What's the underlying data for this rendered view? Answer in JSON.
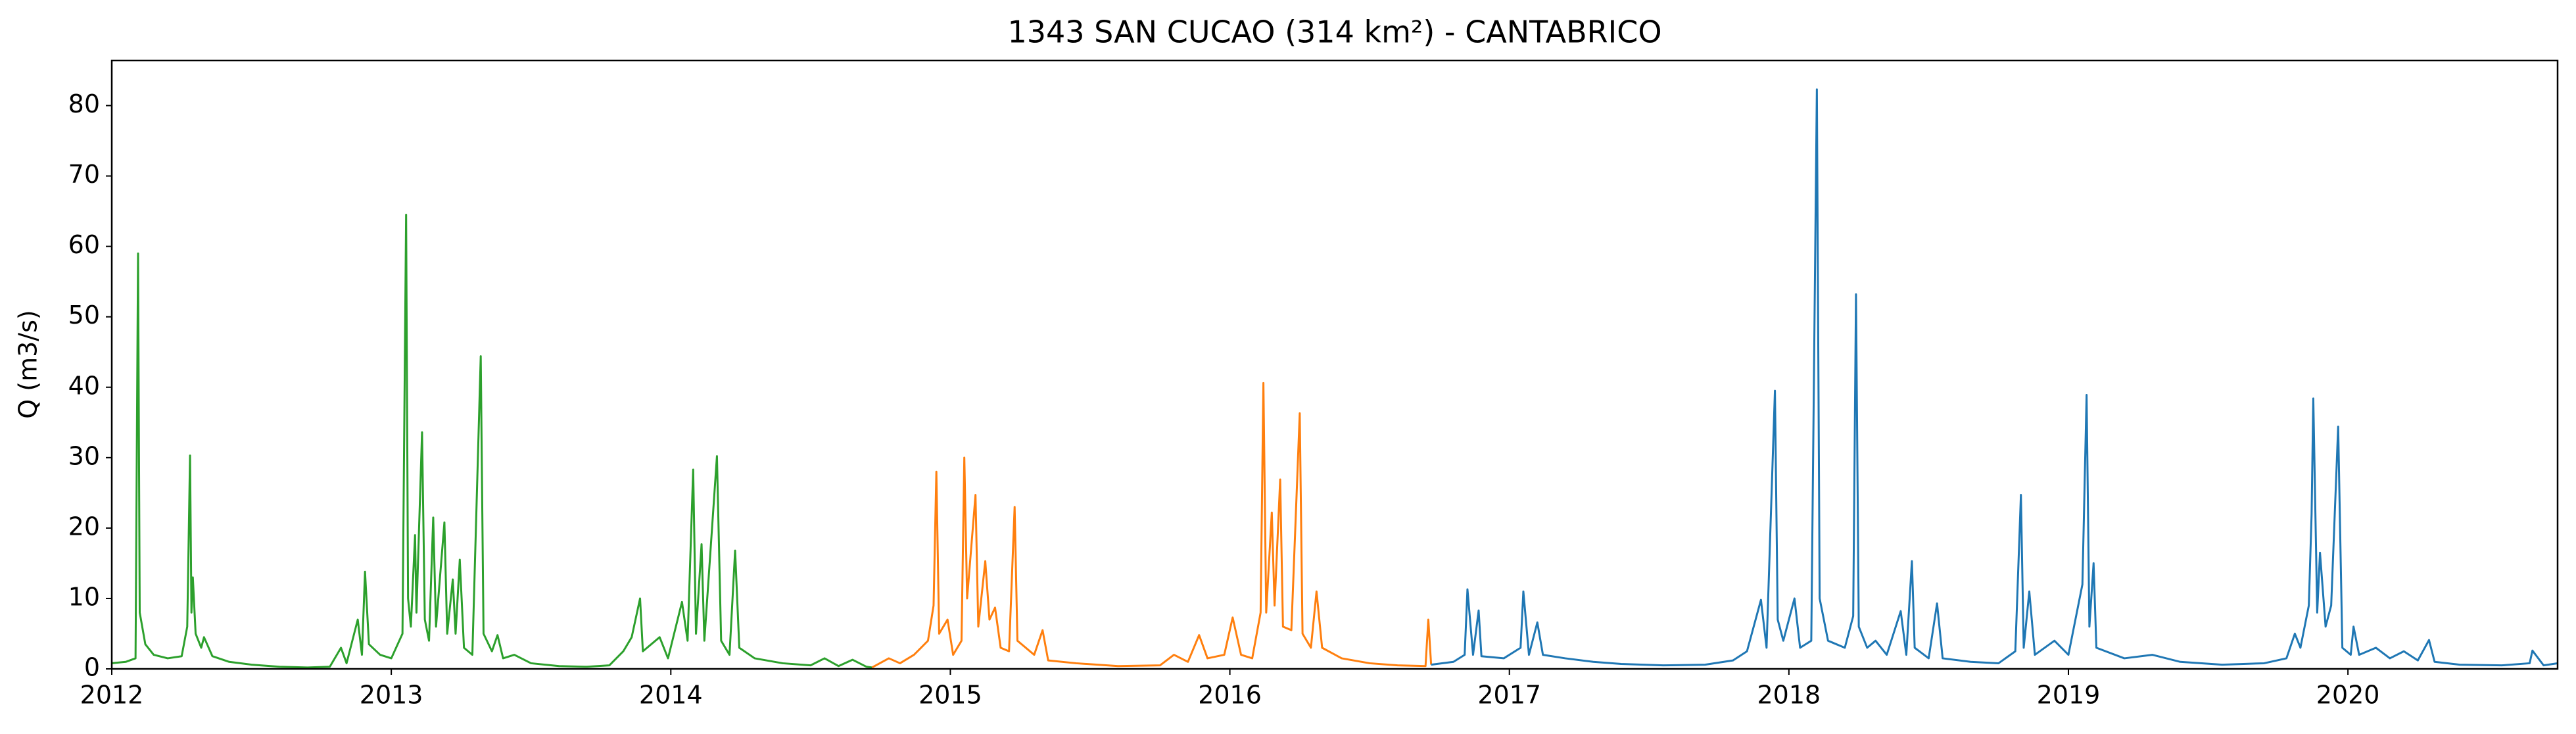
{
  "chart_data": {
    "type": "line",
    "title": "1343 SAN CUCAO (314 km²) - CANTABRICO",
    "ylabel": "Q (m3/s)",
    "xlim": [
      2012,
      2020.75
    ],
    "xticks": [
      2012,
      2013,
      2014,
      2015,
      2016,
      2017,
      2018,
      2019,
      2020
    ],
    "ylim": [
      0,
      86.4
    ],
    "yticks": [
      0,
      10,
      20,
      30,
      40,
      50,
      60,
      70,
      80
    ],
    "grid": false,
    "series": [
      {
        "color": "#2ca02c",
        "x": [
          2012.0,
          2012.05,
          2012.085,
          2012.094,
          2012.1,
          2012.12,
          2012.15,
          2012.2,
          2012.25,
          2012.27,
          2012.28,
          2012.285,
          2012.29,
          2012.3,
          2012.32,
          2012.33,
          2012.36,
          2012.42,
          2012.5,
          2012.6,
          2012.7,
          2012.78,
          2012.82,
          2012.84,
          2012.88,
          2012.895,
          2012.906,
          2012.92,
          2012.96,
          2013.0,
          2013.04,
          2013.053,
          2013.06,
          2013.07,
          2013.085,
          2013.09,
          2013.11,
          2013.12,
          2013.135,
          2013.15,
          2013.16,
          2013.19,
          2013.2,
          2013.22,
          2013.23,
          2013.245,
          2013.26,
          2013.29,
          2013.32,
          2013.33,
          2013.36,
          2013.38,
          2013.4,
          2013.44,
          2013.5,
          2013.6,
          2013.7,
          2013.78,
          2013.83,
          2013.86,
          2013.89,
          2013.9,
          2013.96,
          2013.99,
          2014.04,
          2014.06,
          2014.08,
          2014.09,
          2014.11,
          2014.12,
          2014.165,
          2014.18,
          2014.21,
          2014.23,
          2014.245,
          2014.3,
          2014.4,
          2014.5,
          2014.55,
          2014.6,
          2014.65,
          2014.7,
          2014.72
        ],
        "values": [
          0.8,
          1.0,
          1.5,
          59,
          8,
          3.5,
          2,
          1.5,
          1.8,
          6,
          30.3,
          8,
          13,
          5,
          3,
          4.5,
          1.8,
          1.0,
          0.6,
          0.3,
          0.2,
          0.3,
          3,
          0.8,
          7,
          2,
          13.8,
          3.5,
          2,
          1.5,
          5,
          64.5,
          10,
          6,
          19,
          8,
          33.6,
          7,
          4,
          21.5,
          6,
          20.8,
          5,
          12.7,
          5,
          15.5,
          3,
          2,
          44.4,
          5,
          2.5,
          4.8,
          1.5,
          2,
          0.8,
          0.4,
          0.3,
          0.5,
          2.5,
          4.5,
          10,
          2.5,
          4.5,
          1.5,
          9.5,
          4,
          28.3,
          5,
          17.7,
          4,
          30.2,
          4,
          2,
          16.8,
          3,
          1.5,
          0.8,
          0.5,
          1.5,
          0.4,
          1.3,
          0.3,
          0.2
        ]
      },
      {
        "color": "#ff7f0e",
        "x": [
          2014.72,
          2014.78,
          2014.82,
          2014.87,
          2014.92,
          2014.94,
          2014.95,
          2014.96,
          2014.99,
          2015.01,
          2015.04,
          2015.05,
          2015.06,
          2015.09,
          2015.1,
          2015.125,
          2015.14,
          2015.16,
          2015.18,
          2015.21,
          2015.23,
          2015.24,
          2015.3,
          2015.33,
          2015.35,
          2015.45,
          2015.6,
          2015.75,
          2015.8,
          2015.85,
          2015.89,
          2015.92,
          2015.98,
          2016.01,
          2016.04,
          2016.08,
          2016.11,
          2016.12,
          2016.13,
          2016.15,
          2016.16,
          2016.18,
          2016.19,
          2016.22,
          2016.25,
          2016.26,
          2016.29,
          2016.31,
          2016.33,
          2016.4,
          2016.5,
          2016.6,
          2016.7,
          2016.71,
          2016.72
        ],
        "values": [
          0.2,
          1.5,
          0.8,
          2,
          4,
          9,
          28,
          5,
          7,
          2,
          4,
          30,
          10,
          24.7,
          6,
          15.3,
          7,
          8.7,
          3,
          2.5,
          23,
          4,
          2,
          5.5,
          1.2,
          0.8,
          0.4,
          0.5,
          2,
          1,
          4.8,
          1.5,
          2,
          7.3,
          2,
          1.5,
          8,
          40.6,
          8,
          22.2,
          9,
          26.9,
          6,
          5.5,
          36.3,
          5,
          3,
          11,
          3,
          1.5,
          0.8,
          0.5,
          0.4,
          7,
          0.6
        ]
      },
      {
        "color": "#1f77b4",
        "x": [
          2016.72,
          2016.8,
          2016.84,
          2016.85,
          2016.87,
          2016.89,
          2016.9,
          2016.98,
          2017.04,
          2017.05,
          2017.07,
          2017.1,
          2017.12,
          2017.2,
          2017.3,
          2017.4,
          2017.55,
          2017.7,
          2017.8,
          2017.85,
          2017.9,
          2017.92,
          2017.95,
          2017.96,
          2017.98,
          2018.02,
          2018.04,
          2018.08,
          2018.1,
          2018.11,
          2018.14,
          2018.2,
          2018.23,
          2018.24,
          2018.25,
          2018.28,
          2018.31,
          2018.35,
          2018.4,
          2018.42,
          2018.44,
          2018.45,
          2018.5,
          2018.53,
          2018.55,
          2018.65,
          2018.75,
          2018.81,
          2018.83,
          2018.84,
          2018.86,
          2018.88,
          2018.95,
          2019.0,
          2019.05,
          2019.065,
          2019.075,
          2019.09,
          2019.1,
          2019.2,
          2019.3,
          2019.4,
          2019.55,
          2019.7,
          2019.78,
          2019.81,
          2019.83,
          2019.86,
          2019.87,
          2019.876,
          2019.89,
          2019.9,
          2019.92,
          2019.94,
          2019.965,
          2019.98,
          2020.01,
          2020.02,
          2020.04,
          2020.1,
          2020.15,
          2020.2,
          2020.25,
          2020.29,
          2020.31,
          2020.4,
          2020.55,
          2020.65,
          2020.66,
          2020.7,
          2020.75
        ],
        "values": [
          0.6,
          1,
          2,
          11.3,
          2,
          8.3,
          1.8,
          1.5,
          3,
          11,
          2,
          6.6,
          2,
          1.5,
          1,
          0.7,
          0.5,
          0.6,
          1.2,
          2.5,
          9.8,
          3,
          39.5,
          7,
          4,
          10,
          3,
          4,
          82.3,
          10,
          4,
          3,
          7.5,
          53.2,
          6,
          3,
          4,
          2,
          8.2,
          2,
          15.3,
          3,
          1.5,
          9.3,
          1.5,
          1,
          0.8,
          2.5,
          24.7,
          3,
          11,
          2,
          4,
          2,
          12,
          38.9,
          6,
          15,
          3,
          1.5,
          2,
          1,
          0.6,
          0.8,
          1.5,
          5,
          3,
          9,
          22,
          38.4,
          8,
          16.5,
          6,
          9,
          34.4,
          3,
          2,
          6,
          2,
          3,
          1.5,
          2.5,
          1.2,
          4.1,
          1,
          0.6,
          0.5,
          0.8,
          2.6,
          0.5,
          0.8
        ]
      }
    ]
  }
}
